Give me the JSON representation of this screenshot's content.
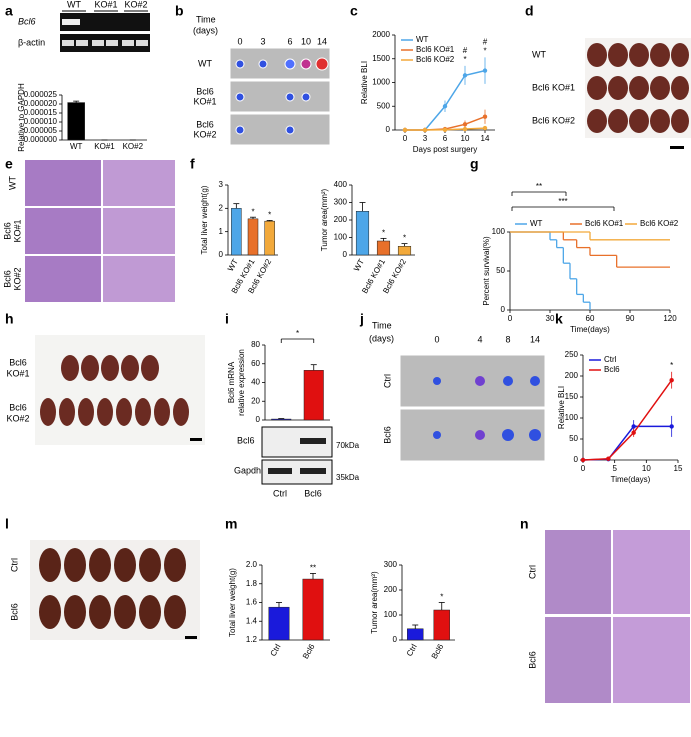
{
  "panel_labels": [
    "a",
    "b",
    "c",
    "d",
    "e",
    "f",
    "g",
    "h",
    "i",
    "j",
    "k",
    "l",
    "m",
    "n"
  ],
  "gel": {
    "rows": [
      "Bcl6",
      "β-actin"
    ],
    "lanes": [
      "WT",
      "KO#1",
      "KO#2"
    ]
  },
  "bli_ko": {
    "title": [
      "Time",
      "(days)"
    ],
    "days": [
      "0",
      "3",
      "6",
      "10",
      "14"
    ],
    "rows": [
      [
        "WT"
      ],
      [
        "Bcl6",
        "KO#1"
      ],
      [
        "Bcl6",
        "KO#2"
      ]
    ]
  },
  "liver_ko": {
    "rows": [
      "WT",
      "Bcl6 KO#1",
      "Bcl6 KO#2"
    ]
  },
  "histology_ko": {
    "rows": [
      [
        "WT"
      ],
      [
        "Bcl6",
        "KO#1"
      ],
      [
        "Bcl6",
        "KO#2"
      ]
    ]
  },
  "liver_ko2": {
    "rows": [
      [
        "Bcl6",
        "KO#1"
      ],
      [
        "Bcl6",
        "KO#2"
      ]
    ]
  },
  "blot": {
    "rows": [
      "Bcl6",
      "Gapdh"
    ],
    "markers": [
      "70kDa",
      "35kDa"
    ]
  },
  "bli_oe": {
    "title": [
      "Time",
      "(days)"
    ],
    "days": [
      "0",
      "4",
      "8",
      "14"
    ],
    "rows": [
      "Ctrl",
      "Bcl6"
    ]
  },
  "liver_oe": {
    "rows": [
      "Ctrl",
      "Bcl6"
    ]
  },
  "histology_oe": {
    "rows": [
      "Ctrl",
      "Bcl6"
    ]
  },
  "chart_data": [
    {
      "type": "bar",
      "ylabel": [
        "Relative to GAPDH"
      ],
      "categories": [
        "WT",
        "KO#1",
        "KO#2"
      ],
      "values": [
        2.08e-05,
        0,
        0
      ],
      "errors": [
        8e-07,
        0,
        0
      ],
      "color": "#000000",
      "ylim": [
        0,
        2.5e-05
      ],
      "yticks": [
        {
          "value": 0,
          "label": "0.000000"
        },
        {
          "value": 5e-06,
          "label": "0.000005"
        },
        {
          "value": 1e-05,
          "label": "0.000010"
        },
        {
          "value": 1.5e-05,
          "label": "0.000015"
        },
        {
          "value": 2e-05,
          "label": "0.000020"
        },
        {
          "value": 2.5e-05,
          "label": "0.000025"
        }
      ]
    },
    {
      "type": "line",
      "xlabel": "Days post surgery",
      "ylabel": [
        "Relative BLI"
      ],
      "categories": [
        "0",
        "3",
        "6",
        "10",
        "14"
      ],
      "series": [
        {
          "name": "WT",
          "color": "#4da6e8",
          "values": [
            0,
            0,
            500,
            1150,
            1250
          ],
          "errors": [
            0,
            0,
            120,
            200,
            280
          ]
        },
        {
          "name": "Bcl6 KO#1",
          "color": "#e8702a",
          "values": [
            0,
            0,
            20,
            120,
            280
          ],
          "errors": [
            0,
            0,
            10,
            80,
            150
          ]
        },
        {
          "name": "Bcl6 KO#2",
          "color": "#f2a93b",
          "values": [
            0,
            0,
            5,
            20,
            40
          ],
          "errors": [
            0,
            0,
            5,
            10,
            20
          ]
        }
      ],
      "ylim": [
        0,
        2000
      ],
      "yticks": [
        0,
        500,
        1000,
        1500,
        2000
      ],
      "annotations": [
        [
          null,
          null,
          null,
          "#",
          "#"
        ],
        [
          null,
          null,
          null,
          "*",
          "*"
        ]
      ]
    },
    {
      "type": "bar",
      "ylabel": [
        "Total liver weight(g)"
      ],
      "categories": [
        "WT",
        "Bcl6 KO#1",
        "Bcl6 KO#2"
      ],
      "values": [
        2.0,
        1.55,
        1.45
      ],
      "errors": [
        0.2,
        0.07,
        0.03
      ],
      "colors": [
        "#4da6e8",
        "#e8702a",
        "#f2a93b"
      ],
      "ylim": [
        0,
        3
      ],
      "yticks": [
        0,
        1,
        2,
        3
      ],
      "annotations": [
        null,
        "*",
        "*"
      ]
    },
    {
      "type": "bar",
      "ylabel": [
        "Tumor area(mm²)"
      ],
      "categories": [
        "WT",
        "Bcl6 KO#1",
        "Bcl6 KO#2"
      ],
      "values": [
        250,
        80,
        50
      ],
      "errors": [
        50,
        15,
        15
      ],
      "colors": [
        "#4da6e8",
        "#e8702a",
        "#f2a93b"
      ],
      "ylim": [
        0,
        400
      ],
      "yticks": [
        0,
        100,
        200,
        300,
        400
      ],
      "annotations": [
        null,
        "*",
        "*"
      ]
    },
    {
      "type": "step",
      "xlabel": "Time(days)",
      "ylabel": [
        "Percent survival(%)"
      ],
      "series": [
        {
          "name": "WT",
          "color": "#4da6e8",
          "x": [
            0,
            30,
            35,
            40,
            45,
            50,
            55,
            60
          ],
          "values": [
            100,
            90,
            80,
            60,
            40,
            20,
            10,
            0
          ]
        },
        {
          "name": "Bcl6 KO#1",
          "color": "#e8702a",
          "x": [
            0,
            40,
            50,
            60,
            80,
            120
          ],
          "values": [
            100,
            90,
            80,
            70,
            55,
            55
          ]
        },
        {
          "name": "Bcl6 KO#2",
          "color": "#f2a93b",
          "x": [
            0,
            60,
            120
          ],
          "values": [
            100,
            90,
            90
          ]
        }
      ],
      "xlim": [
        0,
        120
      ],
      "xticks": [
        0,
        30,
        60,
        90,
        120
      ],
      "ylim": [
        0,
        100
      ],
      "yticks": [
        0,
        50,
        100
      ],
      "annotations": [
        "**",
        "***"
      ]
    },
    {
      "type": "bar",
      "ylabel": [
        "Bcl6 mRNA",
        "relative expression"
      ],
      "categories": [
        "Ctrl",
        "Bcl6"
      ],
      "values": [
        1,
        53
      ],
      "errors": [
        0.5,
        6
      ],
      "colors": [
        "#1a1adb",
        "#e01010"
      ],
      "ylim": [
        0,
        80
      ],
      "yticks": [
        0,
        20,
        40,
        60,
        80
      ],
      "annotation": "*"
    },
    {
      "type": "line",
      "xlabel": "Time(days)",
      "ylabel": [
        "Relative BLI"
      ],
      "x": [
        0,
        4,
        8,
        14
      ],
      "series": [
        {
          "name": "Ctrl",
          "color": "#1a1adb",
          "values": [
            0,
            2,
            80,
            80
          ],
          "errors": [
            0,
            1,
            15,
            25
          ]
        },
        {
          "name": "Bcl6",
          "color": "#e01010",
          "values": [
            0,
            3,
            65,
            190
          ],
          "errors": [
            0,
            1,
            10,
            20
          ]
        }
      ],
      "xlim": [
        0,
        15
      ],
      "xticks": [
        0,
        5,
        10,
        15
      ],
      "ylim": [
        0,
        250
      ],
      "yticks": [
        0,
        50,
        100,
        150,
        200,
        250
      ],
      "annotations": [
        [
          null,
          null,
          null,
          "*"
        ]
      ]
    },
    {
      "type": "bar",
      "ylabel": [
        "Total liver weight(g)"
      ],
      "categories": [
        "Ctrl",
        "Bcl6"
      ],
      "values": [
        1.55,
        1.85
      ],
      "errors": [
        0.05,
        0.06
      ],
      "colors": [
        "#1a1adb",
        "#e01010"
      ],
      "ylim": [
        1.2,
        2.0
      ],
      "yticks": [
        1.2,
        1.4,
        1.6,
        1.8,
        {
          "value": 2,
          "label": "2.0"
        }
      ],
      "annotations": [
        null,
        "**"
      ]
    },
    {
      "type": "bar",
      "ylabel": [
        "Tumor area(mm²)"
      ],
      "categories": [
        "Ctrl",
        "Bcl6"
      ],
      "values": [
        45,
        120
      ],
      "errors": [
        15,
        30
      ],
      "colors": [
        "#1a1adb",
        "#e01010"
      ],
      "ylim": [
        0,
        300
      ],
      "yticks": [
        0,
        100,
        200,
        300
      ],
      "annotations": [
        null,
        "*"
      ]
    }
  ]
}
